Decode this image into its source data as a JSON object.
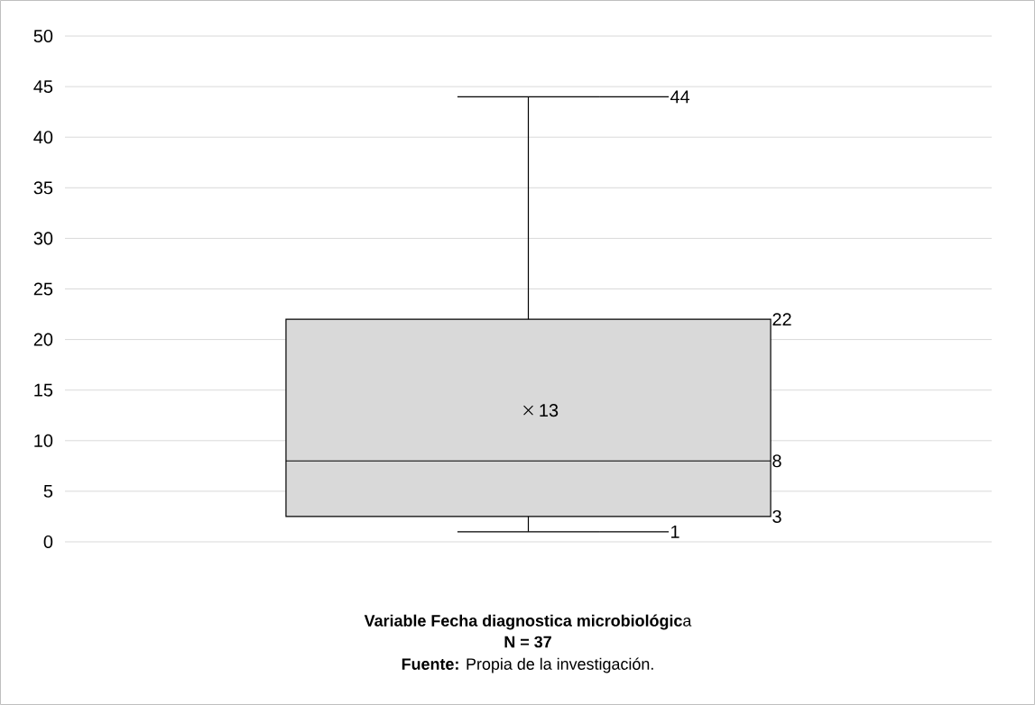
{
  "chart_data": {
    "type": "box",
    "categories": [
      null
    ],
    "color": "#d9d9d9",
    "boxes": [
      {
        "low": 1,
        "q1": 2.5,
        "median": 8,
        "q3": 22,
        "high": 44,
        "mean": 13
      }
    ],
    "ylim": [
      0,
      50
    ],
    "yticks": [
      0,
      5,
      10,
      15,
      20,
      25,
      30,
      35,
      40,
      45,
      50
    ],
    "grid": "y",
    "xlabel": "**Variable Fecha diagnostica microbiológic**a",
    "annotations": [
      "44",
      "22",
      "13",
      "8",
      "3",
      "1",
      "N = 37",
      "**Fuente:** Propia de la investigación."
    ]
  }
}
